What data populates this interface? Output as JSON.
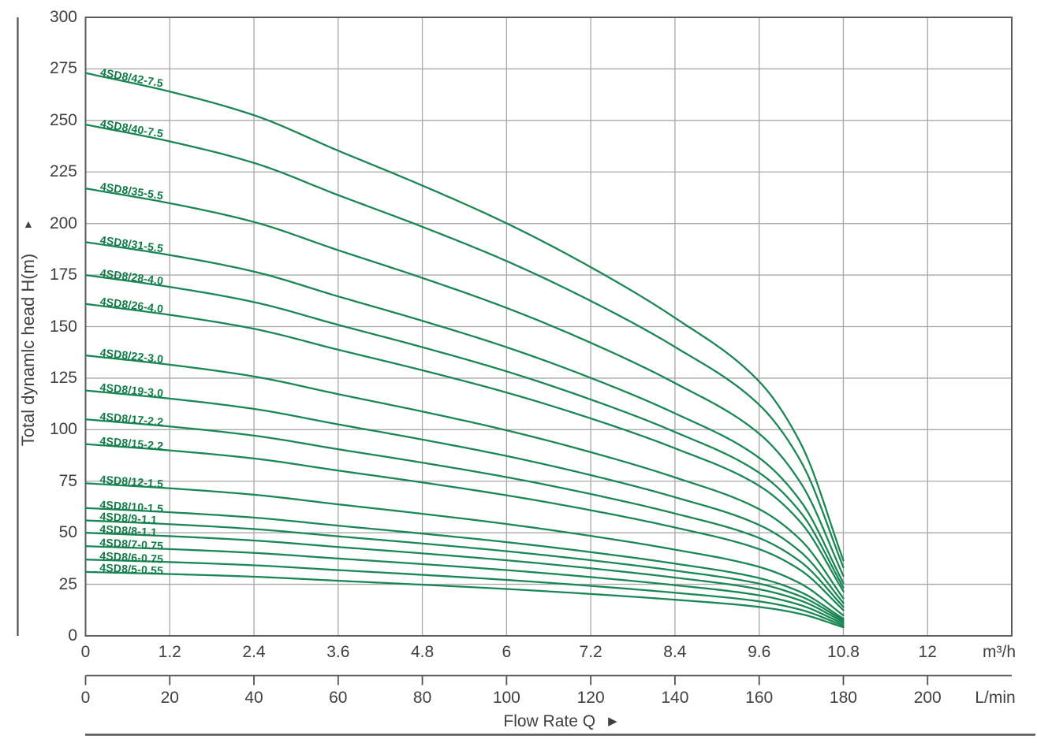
{
  "chart_data": {
    "type": "line",
    "title": "",
    "x_label": "Flow Rate Q",
    "y_axis": {
      "label": "Total dynamlc head H(m)",
      "tick_labels": [
        "0",
        "25",
        "50",
        "75",
        "100",
        "125",
        "150",
        "175",
        "200",
        "225",
        "250",
        "275",
        "300"
      ],
      "range": [
        0,
        300
      ],
      "grid": true
    },
    "x_axis_primary": {
      "unit": "m³/h",
      "tick_labels": [
        "0",
        "1.2",
        "2.4",
        "3.6",
        "4.8",
        "6",
        "7.2",
        "8.4",
        "9.6",
        "10.8",
        "12"
      ],
      "range": [
        0,
        13.2
      ],
      "grid": true
    },
    "x_axis_secondary": {
      "unit": "L/min",
      "tick_labels": [
        "0",
        "20",
        "40",
        "60",
        "80",
        "100",
        "120",
        "140",
        "160",
        "180",
        "200"
      ],
      "range": [
        0,
        220
      ]
    },
    "max_flow_m3h": 10.8,
    "curve_shape": {
      "flows_m3h": [
        0,
        1.2,
        2.4,
        3.6,
        4.8,
        6.0,
        7.2,
        8.4,
        9.6,
        10.2,
        10.8
      ],
      "head_fraction_of_shutoff": [
        1.0,
        0.967,
        0.925,
        0.862,
        0.8,
        0.733,
        0.655,
        0.565,
        0.452,
        0.34,
        0.134
      ]
    },
    "series": [
      {
        "label": "4SD8/42-7.5",
        "shutoff_head_m": 273
      },
      {
        "label": "4SD8/40-7.5",
        "shutoff_head_m": 248
      },
      {
        "label": "4SD8/35-5.5",
        "shutoff_head_m": 217
      },
      {
        "label": "4SD8/31-5.5",
        "shutoff_head_m": 191
      },
      {
        "label": "4SD8/28-4.0",
        "shutoff_head_m": 175
      },
      {
        "label": "4SD8/26-4.0",
        "shutoff_head_m": 161
      },
      {
        "label": "4SD8/22-3.0",
        "shutoff_head_m": 136
      },
      {
        "label": "4SD8/19-3.0",
        "shutoff_head_m": 119
      },
      {
        "label": "4SD8/17-2.2",
        "shutoff_head_m": 105
      },
      {
        "label": "4SD8/15-2.2",
        "shutoff_head_m": 93
      },
      {
        "label": "4SD8/12-1.5",
        "shutoff_head_m": 74
      },
      {
        "label": "4SD8/10-1.5",
        "shutoff_head_m": 62
      },
      {
        "label": "4SD8/9-1.1",
        "shutoff_head_m": 56
      },
      {
        "label": "4SD8/8-1.1",
        "shutoff_head_m": 50
      },
      {
        "label": "4SD8/7-0.75",
        "shutoff_head_m": 43.5
      },
      {
        "label": "4SD8/6-0.75",
        "shutoff_head_m": 37
      },
      {
        "label": "4SD8/5-0.55",
        "shutoff_head_m": 31
      }
    ],
    "legend_position": "labels-on-curves"
  },
  "icons": {
    "up_arrow": "▲",
    "right_arrow": "▶"
  },
  "colors": {
    "curve": "#1a8754",
    "curve_label": "#0e7a45",
    "grid": "#a8a8a8",
    "border": "#5c5c5c",
    "axis_rule": "#525252",
    "text": "#3f4040",
    "background": "#ffffff"
  }
}
